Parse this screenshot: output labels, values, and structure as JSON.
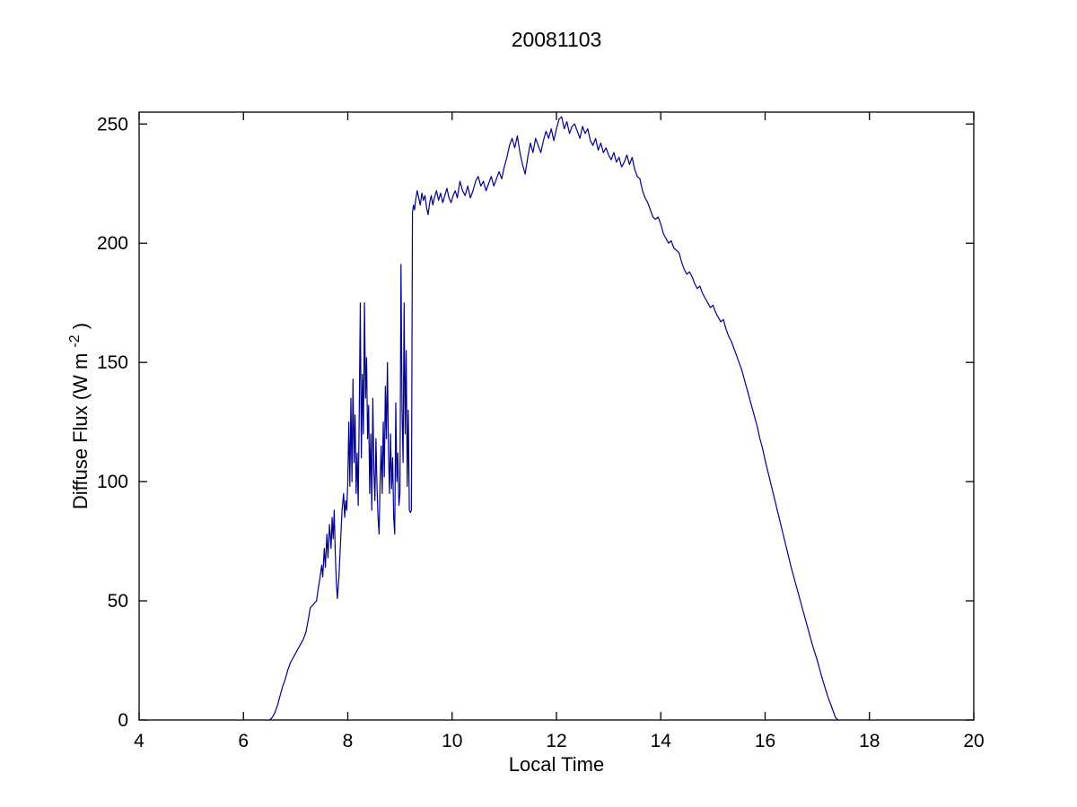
{
  "chart_data": {
    "type": "line",
    "title": "20081103",
    "xlabel": "Local Time",
    "ylabel": "Diffuse Flux (W m⁻²)",
    "ylabel_parts": {
      "main": "Diffuse Flux (W m",
      "sup": "-2",
      "end": ")"
    },
    "xlim": [
      4,
      20
    ],
    "ylim": [
      0,
      255
    ],
    "x_ticks": [
      4,
      6,
      8,
      10,
      12,
      14,
      16,
      18,
      20
    ],
    "y_ticks": [
      0,
      50,
      100,
      150,
      200,
      250
    ],
    "grid": false,
    "legend_position": "none",
    "line_color": "#00008B",
    "axis_color": "#000000",
    "background_color": "#FFFFFF",
    "series": [
      {
        "name": "diffuse-flux",
        "x": [
          6.5,
          6.55,
          6.6,
          6.65,
          6.7,
          6.75,
          6.8,
          6.85,
          6.9,
          6.95,
          7.0,
          7.05,
          7.1,
          7.15,
          7.2,
          7.25,
          7.28,
          7.32,
          7.36,
          7.4,
          7.44,
          7.47,
          7.5,
          7.52,
          7.55,
          7.57,
          7.6,
          7.62,
          7.65,
          7.68,
          7.7,
          7.72,
          7.74,
          7.76,
          7.78,
          7.8,
          7.83,
          7.86,
          7.89,
          7.92,
          7.94,
          7.96,
          7.98,
          8.0,
          8.02,
          8.04,
          8.06,
          8.08,
          8.1,
          8.12,
          8.14,
          8.16,
          8.18,
          8.2,
          8.22,
          8.24,
          8.26,
          8.28,
          8.3,
          8.32,
          8.34,
          8.36,
          8.38,
          8.4,
          8.42,
          8.44,
          8.46,
          8.48,
          8.5,
          8.52,
          8.54,
          8.56,
          8.58,
          8.6,
          8.62,
          8.64,
          8.66,
          8.68,
          8.7,
          8.72,
          8.74,
          8.76,
          8.78,
          8.8,
          8.82,
          8.84,
          8.86,
          8.88,
          8.9,
          8.92,
          8.94,
          8.96,
          8.98,
          9.0,
          9.02,
          9.04,
          9.06,
          9.08,
          9.1,
          9.12,
          9.14,
          9.16,
          9.18,
          9.2,
          9.22,
          9.24,
          9.26,
          9.28,
          9.3,
          9.33,
          9.36,
          9.39,
          9.42,
          9.45,
          9.48,
          9.51,
          9.54,
          9.57,
          9.6,
          9.63,
          9.66,
          9.7,
          9.74,
          9.78,
          9.82,
          9.86,
          9.9,
          9.94,
          9.98,
          10.02,
          10.06,
          10.1,
          10.15,
          10.2,
          10.25,
          10.3,
          10.35,
          10.4,
          10.45,
          10.5,
          10.55,
          10.6,
          10.65,
          10.7,
          10.75,
          10.8,
          10.85,
          10.9,
          10.95,
          11.0,
          11.05,
          11.1,
          11.15,
          11.2,
          11.25,
          11.3,
          11.35,
          11.4,
          11.45,
          11.5,
          11.55,
          11.6,
          11.65,
          11.7,
          11.75,
          11.8,
          11.85,
          11.9,
          11.95,
          12.0,
          12.05,
          12.1,
          12.15,
          12.2,
          12.25,
          12.3,
          12.35,
          12.4,
          12.45,
          12.5,
          12.55,
          12.6,
          12.65,
          12.7,
          12.75,
          12.8,
          12.85,
          12.9,
          12.95,
          13.0,
          13.05,
          13.1,
          13.15,
          13.2,
          13.25,
          13.3,
          13.35,
          13.4,
          13.45,
          13.5,
          13.55,
          13.6,
          13.65,
          13.7,
          13.75,
          13.8,
          13.85,
          13.9,
          13.95,
          14.0,
          14.05,
          14.1,
          14.15,
          14.2,
          14.25,
          14.3,
          14.35,
          14.4,
          14.45,
          14.5,
          14.55,
          14.6,
          14.65,
          14.7,
          14.75,
          14.8,
          14.85,
          14.9,
          14.95,
          15.0,
          15.05,
          15.1,
          15.15,
          15.2,
          15.25,
          15.3,
          15.35,
          15.4,
          15.45,
          15.5,
          15.55,
          15.6,
          15.65,
          15.7,
          15.75,
          15.8,
          15.85,
          15.9,
          15.95,
          16.0,
          16.1,
          16.2,
          16.3,
          16.4,
          16.5,
          16.6,
          16.7,
          16.8,
          16.9,
          17.0,
          17.1,
          17.2,
          17.3,
          17.35,
          17.4
        ],
        "y": [
          0,
          1,
          3,
          6,
          10,
          14,
          17,
          21,
          24,
          26,
          28,
          30,
          32,
          34,
          37,
          43,
          47,
          48,
          49,
          50,
          56,
          60,
          65,
          60,
          72,
          64,
          78,
          68,
          82,
          72,
          85,
          76,
          88,
          70,
          58,
          51,
          60,
          74,
          88,
          95,
          85,
          92,
          88,
          100,
          125,
          98,
          135,
          100,
          143,
          108,
          128,
          95,
          112,
          90,
          130,
          175,
          110,
          145,
          120,
          175,
          135,
          152,
          118,
          132,
          95,
          120,
          88,
          135,
          105,
          92,
          118,
          98,
          85,
          78,
          100,
          115,
          95,
          125,
          102,
          140,
          118,
          150,
          112,
          95,
          120,
          97,
          110,
          85,
          78,
          133,
          100,
          112,
          90,
          95,
          191,
          130,
          108,
          175,
          120,
          155,
          98,
          130,
          88,
          87,
          88,
          213,
          216,
          214,
          218,
          222,
          219,
          216,
          221,
          218,
          220,
          215,
          212,
          217,
          220,
          216,
          219,
          222,
          218,
          221,
          217,
          220,
          223,
          219,
          217,
          220,
          222,
          219,
          226,
          222,
          220,
          224,
          219,
          222,
          226,
          228,
          224,
          226,
          222,
          225,
          228,
          224,
          227,
          230,
          227,
          232,
          236,
          241,
          244,
          240,
          245,
          238,
          233,
          229,
          236,
          242,
          238,
          244,
          241,
          238,
          243,
          247,
          244,
          248,
          243,
          248,
          252,
          253,
          248,
          251,
          246,
          249,
          250,
          247,
          244,
          249,
          246,
          248,
          243,
          241,
          244,
          239,
          242,
          238,
          240,
          237,
          235,
          238,
          234,
          236,
          232,
          234,
          237,
          233,
          236,
          231,
          228,
          227,
          222,
          219,
          217,
          214,
          211,
          210,
          211,
          208,
          204,
          202,
          200,
          201,
          198,
          197,
          196,
          192,
          189,
          187,
          188,
          186,
          183,
          181,
          182,
          179,
          177,
          175,
          173,
          174,
          171,
          169,
          167,
          168,
          164,
          161,
          159,
          156,
          153,
          150,
          147,
          143,
          139,
          135,
          131,
          127,
          123,
          118,
          114,
          109,
          100,
          91,
          82,
          73,
          64,
          56,
          48,
          40,
          32,
          25,
          17,
          10,
          4,
          1,
          0
        ]
      }
    ]
  }
}
